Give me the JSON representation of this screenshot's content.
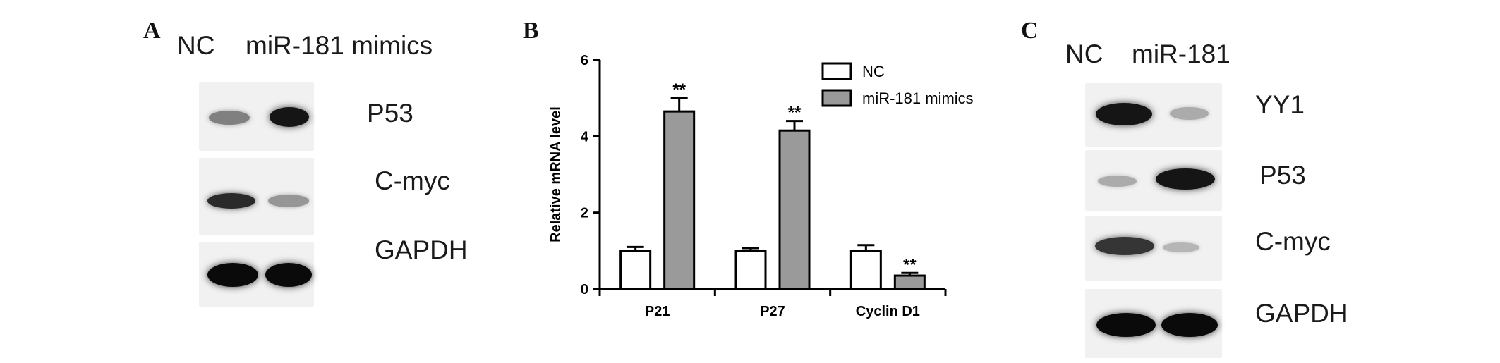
{
  "panels": {
    "a": {
      "letter": "A",
      "lanes": [
        "NC",
        "miR-181 mimics"
      ],
      "proteins": [
        {
          "name": "P53",
          "intensity": [
            0.45,
            0.95
          ]
        },
        {
          "name": "C-myc",
          "intensity": [
            0.85,
            0.35
          ]
        },
        {
          "name": "GAPDH",
          "intensity": [
            1.0,
            1.0
          ]
        }
      ]
    },
    "b": {
      "letter": "B"
    },
    "c": {
      "letter": "C",
      "lanes": [
        "NC",
        "miR-181"
      ],
      "proteins": [
        {
          "name": "YY1",
          "intensity": [
            0.95,
            0.25
          ]
        },
        {
          "name": "P53",
          "intensity": [
            0.25,
            0.95
          ]
        },
        {
          "name": "C-myc",
          "intensity": [
            0.8,
            0.2
          ]
        },
        {
          "name": "GAPDH",
          "intensity": [
            1.0,
            1.0
          ]
        }
      ]
    }
  },
  "chart_data": {
    "type": "bar",
    "categories": [
      "P21",
      "P27",
      "Cyclin D1"
    ],
    "series": [
      {
        "name": "NC",
        "values": [
          1.0,
          1.0,
          1.0
        ],
        "errors": [
          0.1,
          0.07,
          0.15
        ],
        "color": "#ffffff"
      },
      {
        "name": "miR-181 mimics",
        "values": [
          4.65,
          4.15,
          0.35
        ],
        "errors": [
          0.35,
          0.25,
          0.07
        ],
        "color": "#9a9a9a"
      }
    ],
    "significance": [
      "**",
      "**",
      "**"
    ],
    "ylabel": "Relative mRNA level",
    "ylim": [
      0,
      6
    ],
    "yticks": [
      "0",
      "2",
      "4",
      "6"
    ],
    "grid": false,
    "legend_position": "top-right"
  }
}
